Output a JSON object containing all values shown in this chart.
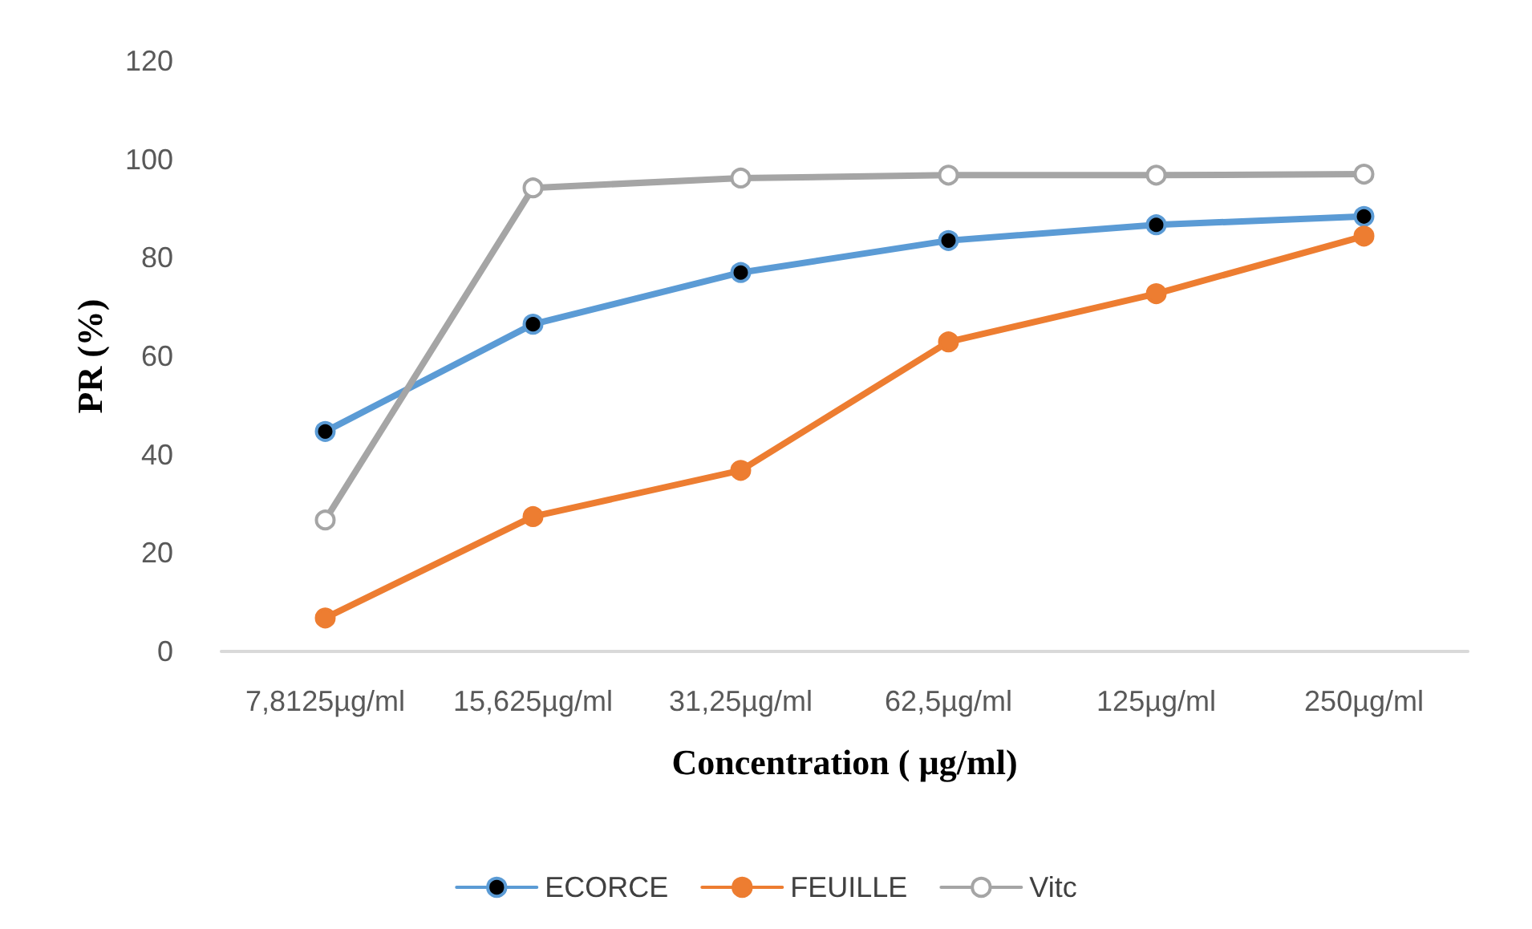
{
  "chart_data": {
    "type": "line",
    "xlabel": "Concentration ( µg/ml)",
    "ylabel": "PR (%)",
    "categories": [
      "7,8125µg/ml",
      "15,625µg/ml",
      "31,25µg/ml",
      "62,5µg/ml",
      "125µg/ml",
      "250µg/ml"
    ],
    "series": [
      {
        "name": "ECORCE",
        "color": "#5b9bd5",
        "values": [
          44.7,
          66.5,
          77,
          83.5,
          86.7,
          88.4
        ]
      },
      {
        "name": "FEUILLE",
        "color": "#ed7d31",
        "values": [
          6.8,
          27.4,
          36.8,
          62.9,
          72.7,
          84.4
        ]
      },
      {
        "name": "Vitc",
        "color": "#a5a5a5",
        "values": [
          26.7,
          94.2,
          96.2,
          96.8,
          96.8,
          97
        ]
      }
    ],
    "ylim": [
      0,
      120
    ],
    "yticks": [
      0,
      20,
      40,
      60,
      80,
      100,
      120
    ],
    "grid": false,
    "legend": "bottom",
    "marker": "circle",
    "line_style": "solid"
  }
}
